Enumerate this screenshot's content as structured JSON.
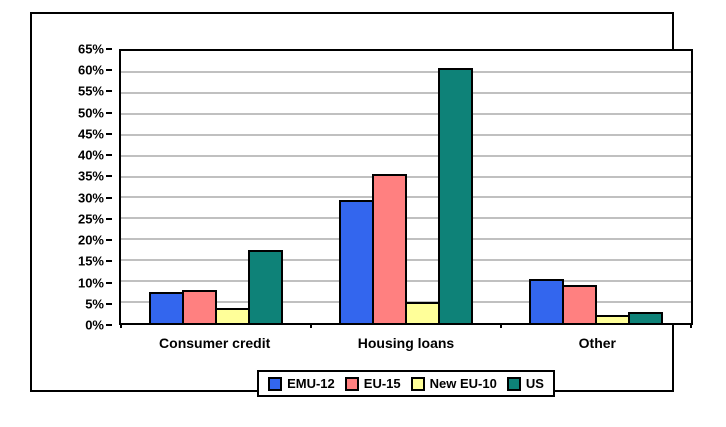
{
  "figure": {
    "background_color": "#FFFFFF",
    "frame_color": "#000000"
  },
  "chart_data": {
    "type": "bar",
    "title": "",
    "xlabel": "",
    "ylabel": "",
    "categories": [
      "Consumer credit",
      "Housing loans",
      "Other"
    ],
    "series": [
      {
        "name": "EMU-12",
        "color": "#3366EE",
        "values": [
          7.3,
          29.5,
          10.4
        ]
      },
      {
        "name": "EU-15",
        "color": "#FF8080",
        "values": [
          7.8,
          35.5,
          9.2
        ]
      },
      {
        "name": "New EU-10",
        "color": "#FFFF99",
        "values": [
          3.7,
          5.0,
          1.9
        ]
      },
      {
        "name": "US",
        "color": "#0E8278",
        "values": [
          17.5,
          61.0,
          2.6
        ]
      }
    ],
    "y_axis": {
      "min": 0,
      "max": 65,
      "step": 5,
      "suffix": "%",
      "tick_labels": [
        "0%",
        "5%",
        "10%",
        "15%",
        "20%",
        "25%",
        "30%",
        "35%",
        "40%",
        "45%",
        "50%",
        "55%",
        "60%",
        "65%"
      ]
    },
    "ylim": [
      0,
      65
    ],
    "grid": true,
    "gridline_color": "#808080",
    "axis_color": "#000000",
    "legend_position": "bottom",
    "legend_entries": [
      "EMU-12",
      "EU-15",
      "New EU-10",
      "US"
    ]
  }
}
